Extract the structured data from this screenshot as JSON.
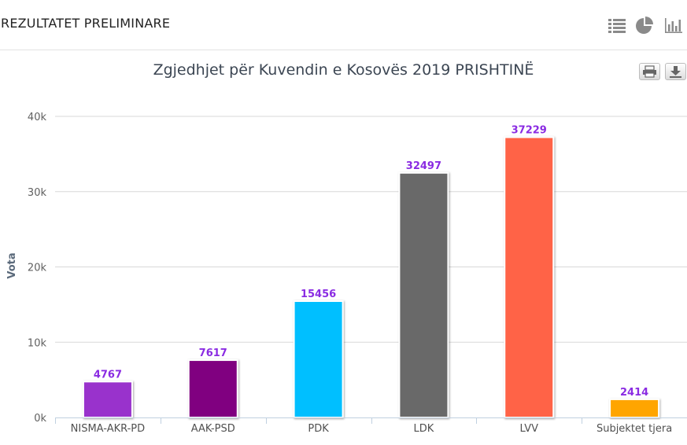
{
  "header": {
    "title": "REZULTATET PRELIMINARE",
    "icons": [
      "list-icon",
      "pie-chart-icon",
      "bar-chart-icon"
    ]
  },
  "toolbar": {
    "icons": [
      "print-icon",
      "download-icon"
    ]
  },
  "colors": {
    "header_icon": "#888888",
    "grid": "#d8d8d8",
    "data_label": "#8a2be2"
  },
  "chart_data": {
    "type": "bar",
    "title": "Zgjedhjet për Kuvendin e Kosovës 2019 PRISHTINË",
    "xlabel": "",
    "ylabel": "Vota",
    "ylim": [
      0,
      40000
    ],
    "yticks": [
      0,
      10000,
      20000,
      30000,
      40000
    ],
    "ytick_labels": [
      "0k",
      "10k",
      "20k",
      "30k",
      "40k"
    ],
    "grid": true,
    "categories": [
      "NISMA-AKR-PD",
      "AAK-PSD",
      "PDK",
      "LDK",
      "LVV",
      "Subjektet tjera"
    ],
    "values": [
      4767,
      7617,
      15456,
      32497,
      37229,
      2414
    ],
    "bar_colors": [
      "#9932cc",
      "#800080",
      "#00bfff",
      "#696969",
      "#ff6347",
      "#ffa500"
    ]
  }
}
